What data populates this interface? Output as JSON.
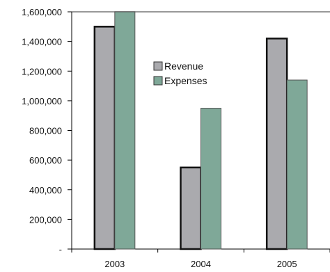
{
  "chart_data": {
    "type": "bar",
    "categories": [
      "2003",
      "2004",
      "2005"
    ],
    "series": [
      {
        "name": "Revenue",
        "values": [
          1500000,
          550000,
          1420000
        ],
        "color": "#aaaaae"
      },
      {
        "name": "Expenses",
        "values": [
          1600000,
          950000,
          1140000
        ],
        "color": "#7fa898"
      }
    ],
    "ylim": [
      0,
      1600000
    ],
    "yticks": [
      0,
      200000,
      400000,
      600000,
      800000,
      1000000,
      1200000,
      1400000,
      1600000
    ],
    "ytick_labels": [
      "-",
      "200,000",
      "400,000",
      "600,000",
      "800,000",
      "1,000,000",
      "1,200,000",
      "1,400,000",
      "1,600,000"
    ],
    "title": "",
    "xlabel": "",
    "ylabel": "",
    "grid": false,
    "legend_position": "center"
  }
}
